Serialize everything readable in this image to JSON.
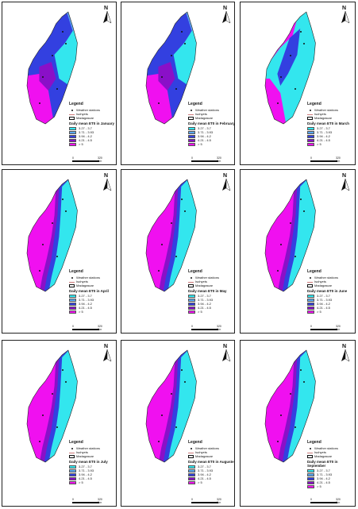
{
  "legend": {
    "title": "Legend",
    "stations_label": "Weather stations",
    "isohyets_label": "Isohyets",
    "madagascar_label": "Madagascar"
  },
  "classes": [
    {
      "label": "3.27 - 3.7",
      "color": "#33e6ee"
    },
    {
      "label": "3.71 - 3.93",
      "color": "#5aa8f0"
    },
    {
      "label": "3.94 - 4.2",
      "color": "#3340e0"
    },
    {
      "label": "4.21 - 4.5",
      "color": "#8a10c8"
    },
    {
      "label": "> 5",
      "color": "#f010f0"
    }
  ],
  "scale": {
    "left": "0",
    "right": "320 Km"
  },
  "north": "N",
  "maps": [
    {
      "month": "January",
      "title": "Daily mean ET0 in January",
      "pattern": "east-wet"
    },
    {
      "month": "February",
      "title": "Daily mean ET0 in February",
      "pattern": "east-wet"
    },
    {
      "month": "March",
      "title": "Daily mean ET0 in March",
      "pattern": "mixed"
    },
    {
      "month": "April",
      "title": "Daily mean ET0 in April",
      "pattern": "west-high"
    },
    {
      "month": "May",
      "title": "Daily mean ET0 in May",
      "pattern": "west-high"
    },
    {
      "month": "June",
      "title": "Daily mean ET0 in June",
      "pattern": "west-high"
    },
    {
      "month": "July",
      "title": "Daily mean ET0 in July",
      "pattern": "west-high"
    },
    {
      "month": "Auguste",
      "title": "Daily mean ET0 in Auguste",
      "pattern": "west-high"
    },
    {
      "month": "September",
      "title": "Daily mean ET0 in September",
      "pattern": "west-high"
    }
  ]
}
